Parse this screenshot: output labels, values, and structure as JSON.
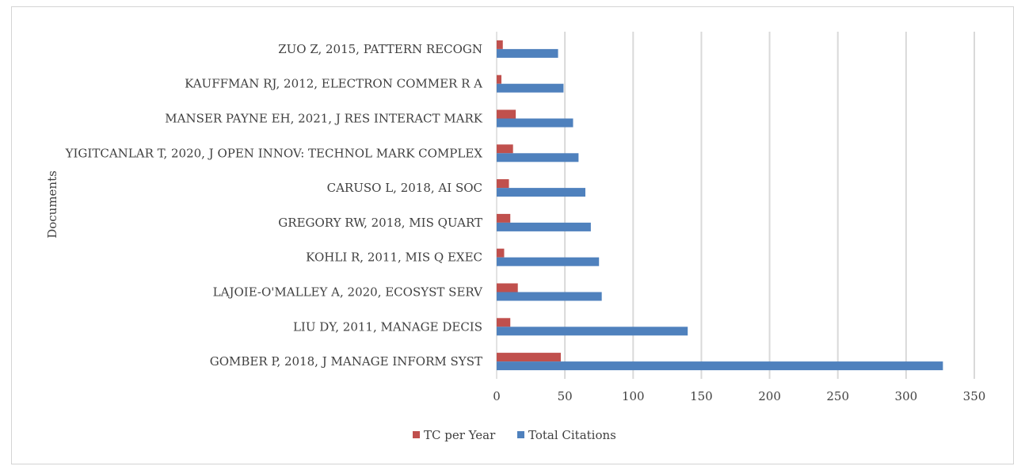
{
  "chart_data": {
    "type": "bar",
    "orientation": "horizontal",
    "ylabel": "Documents",
    "xlabel": "",
    "xlim": [
      0,
      350
    ],
    "xticks": [
      0,
      50,
      100,
      150,
      200,
      250,
      300,
      350
    ],
    "grid": true,
    "legend_position": "bottom",
    "categories": [
      "ZUO Z, 2015, PATTERN RECOGN",
      "KAUFFMAN RJ, 2012, ELECTRON COMMER R A",
      "MANSER PAYNE EH, 2021, J RES INTERACT MARK",
      "YIGITCANLAR T, 2020, J OPEN INNOV: TECHNOL MARK COMPLEX",
      "CARUSO L, 2018, AI SOC",
      "GREGORY RW, 2018, MIS QUART",
      "KOHLI R, 2011, MIS Q EXEC",
      "LAJOIE-O'MALLEY A, 2020, ECOSYST SERV",
      "LIU DY, 2011, MANAGE DECIS",
      "GOMBER P, 2018, J MANAGE INFORM SYST"
    ],
    "series": [
      {
        "name": "TC per Year",
        "color": "#c0504d",
        "values": [
          4.5,
          3.5,
          14,
          12,
          9,
          10,
          5.5,
          15.5,
          10,
          47
        ]
      },
      {
        "name": "Total Citations",
        "color": "#4f81bd",
        "values": [
          45,
          49,
          56,
          60,
          65,
          69,
          75,
          77,
          140,
          327
        ]
      }
    ]
  }
}
